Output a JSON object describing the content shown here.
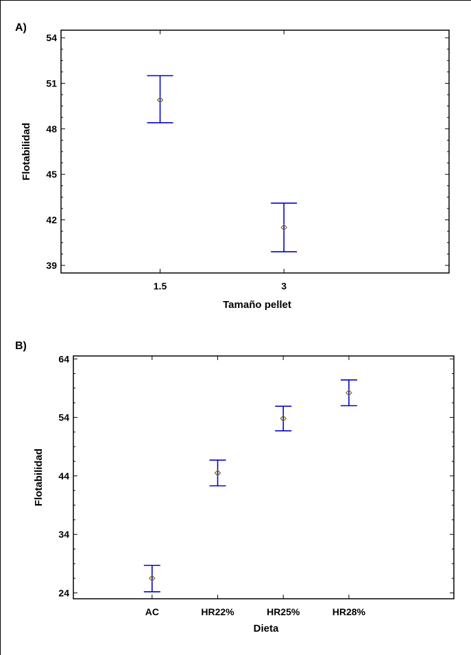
{
  "chart_data": [
    {
      "type": "errorbar",
      "panel_label": "A)",
      "xlabel": "Tamaño pellet",
      "ylabel": "Flotabilidad",
      "categories": [
        "1.5",
        "3"
      ],
      "yticks": [
        39,
        42,
        45,
        48,
        51,
        54
      ],
      "ylim": [
        38.5,
        54.5
      ],
      "mean": [
        49.9,
        41.5
      ],
      "lower": [
        48.4,
        39.9
      ],
      "upper": [
        51.5,
        43.1
      ],
      "x_positions": [
        1.5,
        3
      ],
      "xlim": [
        0.3,
        5.0
      ],
      "grid": false
    },
    {
      "type": "errorbar",
      "panel_label": "B)",
      "xlabel": "Dieta",
      "ylabel": "Flotabilidad",
      "categories": [
        "AC",
        "HR22%",
        "HR25%",
        "HR28%"
      ],
      "yticks": [
        24,
        34,
        44,
        54,
        64
      ],
      "ylim": [
        23,
        64.5
      ],
      "mean": [
        26.5,
        44.5,
        53.8,
        58.2
      ],
      "lower": [
        24.2,
        42.3,
        51.7,
        56.0
      ],
      "upper": [
        28.7,
        46.7,
        55.9,
        60.4
      ],
      "x_positions": [
        1,
        2,
        3,
        4
      ],
      "xlim": [
        -0.2,
        5.6
      ],
      "grid": false
    }
  ]
}
